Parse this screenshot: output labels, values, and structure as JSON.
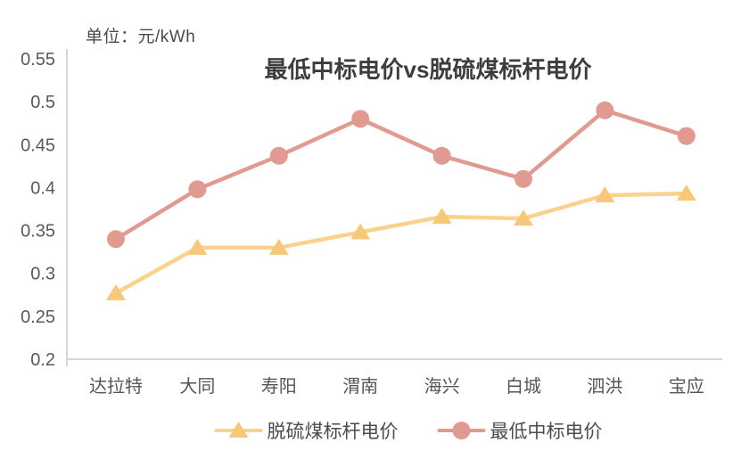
{
  "chart": {
    "unit_label": "单位：元/kWh"
  },
  "chart_data": {
    "type": "line",
    "title": "最低中标电价vs脱硫煤标杆电价",
    "unit": "元/kWh",
    "categories": [
      "达拉特",
      "大同",
      "寿阳",
      "渭南",
      "海兴",
      "白城",
      "泗洪",
      "宝应"
    ],
    "series": [
      {
        "name": "脱硫煤标杆电价",
        "marker": "triangle",
        "color": "#F7C878",
        "line_color": "#FAD28E",
        "values": [
          0.277,
          0.33,
          0.33,
          0.348,
          0.366,
          0.364,
          0.391,
          0.393
        ]
      },
      {
        "name": "最低中标电价",
        "marker": "circle",
        "color": "#E19A8F",
        "line_color": "#E19A8F",
        "values": [
          0.34,
          0.398,
          0.437,
          0.48,
          0.437,
          0.41,
          0.49,
          0.46
        ]
      }
    ],
    "ylim": [
      0.2,
      0.55
    ],
    "yticks": [
      0.2,
      0.25,
      0.3,
      0.35,
      0.4,
      0.45,
      0.5,
      0.55
    ],
    "xlabel": "",
    "ylabel": "",
    "grid": false,
    "legend_position": "bottom",
    "colors": {
      "axis_line": "#d6d6d6",
      "tick_text": "#595959",
      "category_text": "#555555",
      "title_text": "#3d3d3d"
    }
  }
}
